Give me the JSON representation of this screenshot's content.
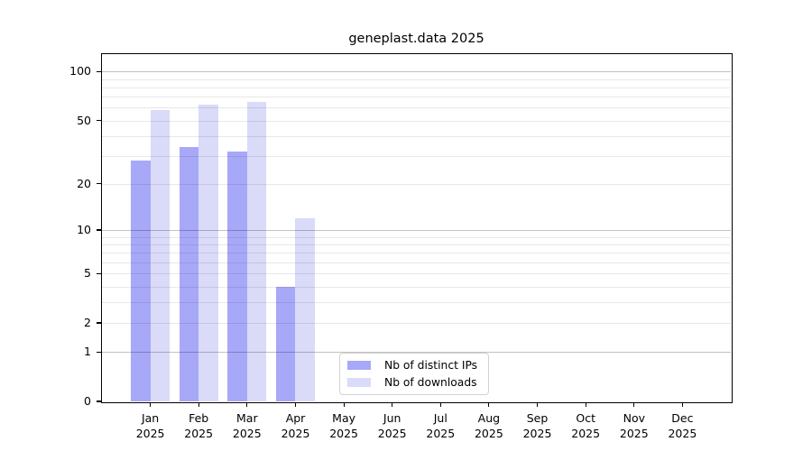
{
  "chart_data": {
    "type": "bar",
    "title": "geneplast.data 2025",
    "categories": [
      "Jan",
      "Feb",
      "Mar",
      "Apr",
      "May",
      "Jun",
      "Jul",
      "Aug",
      "Sep",
      "Oct",
      "Nov",
      "Dec"
    ],
    "x_sublabel": "2025",
    "series": [
      {
        "name": "Nb of distinct IPs",
        "color": "#a8a8f8",
        "values": [
          28,
          34,
          32,
          4,
          0,
          0,
          0,
          0,
          0,
          0,
          0,
          0
        ]
      },
      {
        "name": "Nb of downloads",
        "color": "#dadaf9",
        "values": [
          58,
          63,
          65,
          12,
          0,
          0,
          0,
          0,
          0,
          0,
          0,
          0
        ]
      }
    ],
    "scale": "log1p",
    "ylim": [
      0,
      128
    ],
    "yticks": [
      0,
      1,
      2,
      5,
      10,
      20,
      50,
      100
    ],
    "xlabel": "",
    "ylabel": "",
    "grid": {
      "minor_values": [
        2,
        3,
        4,
        5,
        6,
        7,
        8,
        9,
        20,
        30,
        40,
        50,
        60,
        70,
        80,
        90
      ],
      "major_values": [
        1,
        10,
        100
      ],
      "minor_color": "rgba(0,0,0,0.09)",
      "major_color": "rgba(0,0,0,0.24)"
    },
    "legend": {
      "position": "lower center",
      "border_color": "#d2d2d2",
      "background": "#ffffff"
    },
    "axis_color": "#000000",
    "background": "#ffffff"
  }
}
